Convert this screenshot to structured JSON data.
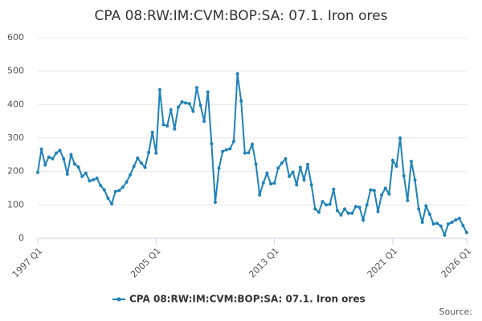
{
  "chart_data": {
    "type": "line",
    "title": "CPA 08:RW:IM:CVM:BOP:SA: 07.1. Iron ores",
    "source": "Source:",
    "categories": [
      "1997 Q1",
      null,
      null,
      null,
      null,
      null,
      null,
      null,
      null,
      null,
      null,
      null,
      null,
      null,
      null,
      null,
      null,
      null,
      null,
      null,
      null,
      null,
      null,
      null,
      null,
      null,
      null,
      null,
      null,
      null,
      null,
      null,
      "2005 Q1",
      null,
      null,
      null,
      null,
      null,
      null,
      null,
      null,
      null,
      null,
      null,
      null,
      null,
      null,
      null,
      null,
      null,
      null,
      null,
      null,
      null,
      null,
      null,
      null,
      null,
      null,
      null,
      null,
      null,
      null,
      null,
      "2013 Q1",
      null,
      null,
      null,
      null,
      null,
      null,
      null,
      null,
      null,
      null,
      null,
      null,
      null,
      null,
      null,
      null,
      null,
      null,
      null,
      null,
      null,
      null,
      null,
      null,
      null,
      null,
      null,
      null,
      null,
      null,
      null,
      "2021 Q1",
      null,
      null,
      null,
      null,
      null,
      null,
      null,
      null,
      null,
      null,
      null,
      null,
      null,
      null,
      null,
      null,
      null,
      null,
      null,
      "2026 Q1"
    ],
    "series": [
      {
        "name": "CPA 08:RW:IM:CVM:BOP:SA: 07.1. Iron ores",
        "color": "#1f82b8",
        "values": [
          197,
          267,
          220,
          243,
          238,
          255,
          263,
          238,
          192,
          250,
          222,
          213,
          185,
          195,
          172,
          175,
          180,
          158,
          145,
          120,
          103,
          140,
          143,
          153,
          168,
          190,
          215,
          240,
          225,
          212,
          257,
          317,
          255,
          445,
          340,
          336,
          385,
          327,
          392,
          408,
          405,
          403,
          380,
          451,
          398,
          350,
          438,
          283,
          108,
          210,
          260,
          265,
          268,
          290,
          492,
          411,
          255,
          256,
          281,
          222,
          130,
          166,
          195,
          163,
          165,
          210,
          225,
          238,
          185,
          198,
          160,
          212,
          175,
          221,
          160,
          88,
          78,
          110,
          100,
          102,
          147,
          83,
          70,
          88,
          75,
          75,
          95,
          93,
          55,
          100,
          145,
          143,
          80,
          130,
          150,
          133,
          233,
          216,
          300,
          187,
          113,
          230,
          175,
          88,
          48,
          97,
          72,
          43,
          45,
          37,
          10,
          43,
          48,
          55,
          60,
          38,
          17
        ]
      }
    ],
    "ylim": [
      0,
      600
    ],
    "yticks": [
      0,
      100,
      200,
      300,
      400,
      500,
      600
    ],
    "grid": true
  }
}
